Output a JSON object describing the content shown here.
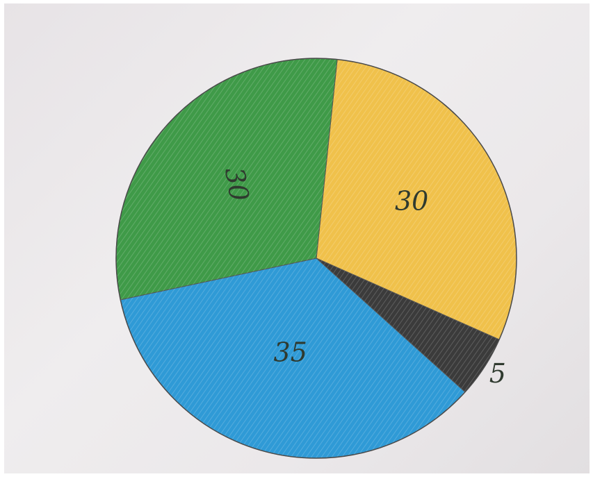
{
  "chart_data": {
    "type": "pie",
    "slices": [
      {
        "value": 30,
        "label": "30",
        "color": "#f0c14b"
      },
      {
        "value": 5,
        "label": "5",
        "color": "#3b3b3b"
      },
      {
        "value": 35,
        "label": "35",
        "color": "#2f9ad6"
      },
      {
        "value": 30,
        "label": "30",
        "color": "#3f9a48"
      }
    ],
    "title": "",
    "legend": "none"
  }
}
